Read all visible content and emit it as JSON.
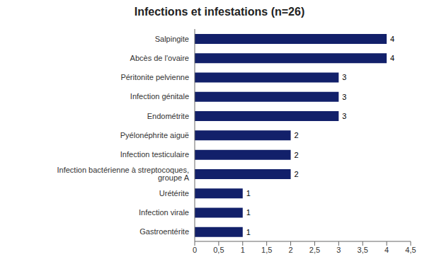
{
  "chart_data": {
    "type": "bar",
    "orientation": "horizontal",
    "title": "Infections et infestations (n=26)",
    "categories": [
      "Gastroentérite",
      "Infection virale",
      "Urétérite",
      "Infection bactérienne à streptocoques, groupe A",
      "Infection testiculaire",
      "Pyélonéphrite aiguë",
      "Endométrite",
      "Infection génitale",
      "Péritonite pelvienne",
      "Abcès de l'ovaire",
      "Salpingite"
    ],
    "values": [
      1,
      1,
      1,
      2,
      2,
      2,
      3,
      3,
      3,
      4,
      4
    ],
    "color": "#12206A",
    "xlim": [
      0,
      4.5
    ],
    "xticks": [
      0,
      {
        "value": 0.5,
        "label": "0,5"
      },
      1,
      {
        "value": 1.5,
        "label": "1,5"
      },
      2,
      {
        "value": 2.5,
        "label": "2,5"
      },
      3,
      {
        "value": 3.5,
        "label": "3,5"
      },
      4,
      {
        "value": 4.5,
        "label": "4,5"
      }
    ],
    "grid": false,
    "data_labels": true
  }
}
